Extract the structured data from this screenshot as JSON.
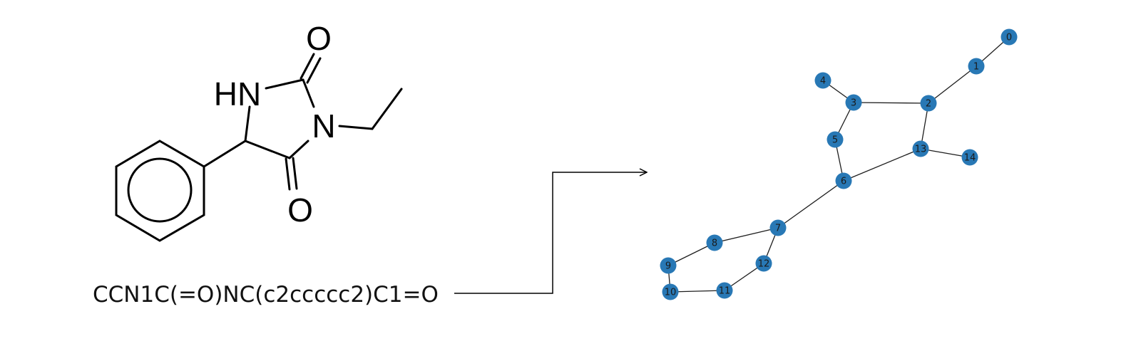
{
  "molecule": {
    "smiles": "CCN1C(=O)NC(c2ccccc2)C1=O",
    "atom_labels": {
      "o_top": "O",
      "o_bottom": "O",
      "n_ring": "N",
      "nh": "HN"
    }
  },
  "graph": {
    "node_color": "#2878b5",
    "edge_color": "#1f1f1f",
    "nodes": [
      "0",
      "1",
      "2",
      "3",
      "4",
      "5",
      "6",
      "7",
      "8",
      "9",
      "10",
      "11",
      "12",
      "13",
      "14"
    ],
    "edges": [
      [
        "0",
        "1"
      ],
      [
        "1",
        "2"
      ],
      [
        "2",
        "3"
      ],
      [
        "3",
        "4"
      ],
      [
        "3",
        "5"
      ],
      [
        "5",
        "6"
      ],
      [
        "6",
        "7"
      ],
      [
        "7",
        "8"
      ],
      [
        "8",
        "9"
      ],
      [
        "9",
        "10"
      ],
      [
        "10",
        "11"
      ],
      [
        "11",
        "12"
      ],
      [
        "12",
        "7"
      ],
      [
        "6",
        "13"
      ],
      [
        "13",
        "2"
      ],
      [
        "13",
        "14"
      ]
    ]
  }
}
